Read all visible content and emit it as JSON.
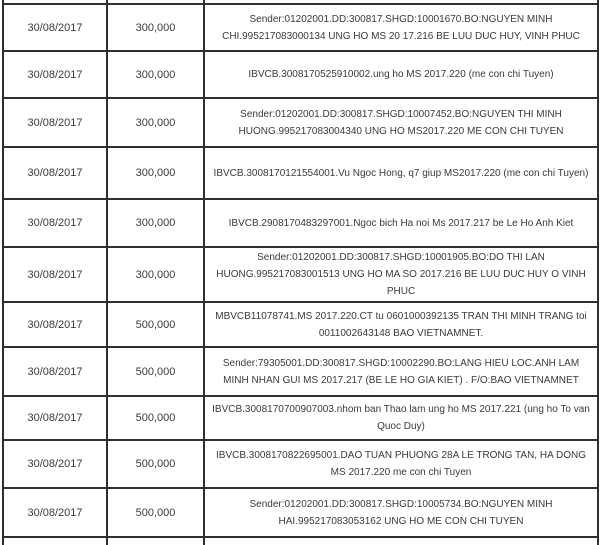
{
  "colors": {
    "border": "#2f2f2f",
    "text": "#3a3a3a",
    "background": "#ffffff"
  },
  "table": {
    "rows": [
      {
        "date": "30/08/2017",
        "amount": "300,000",
        "description": "Sender:01202001.DD:300817.SHGD:10001670.BO:NGUYEN MINH CHI.995217083000134 UNG HO MS 20 17.216 BE LUU DUC HUY, VINH PHUC"
      },
      {
        "date": "30/08/2017",
        "amount": "300,000",
        "description": "IBVCB.3008170525910002.ung ho MS 2017.220 (me con chi Tuyen)"
      },
      {
        "date": "30/08/2017",
        "amount": "300,000",
        "description": "Sender:01202001.DD:300817.SHGD:10007452.BO:NGUYEN THI MINH HUONG.995217083004340 UNG HO MS2017.220 ME CON CHI TUYEN"
      },
      {
        "date": "30/08/2017",
        "amount": "300,000",
        "description": "IBVCB.3008170121554001.Vu Ngoc Hong, q7 giup MS2017.220 (me con chi Tuyen)"
      },
      {
        "date": "30/08/2017",
        "amount": "300,000",
        "description": "IBVCB.2908170483297001.Ngoc bich Ha noi Ms 2017.217 be Le Ho Anh Kiet"
      },
      {
        "date": "30/08/2017",
        "amount": "300,000",
        "description": "Sender:01202001.DD:300817.SHGD:10001905.BO:DO THI LAN HUONG.995217083001513 UNG HO MA SO 2017.216 BE LUU DUC HUY O VINH PHUC"
      },
      {
        "date": "30/08/2017",
        "amount": "500,000",
        "description": "MBVCB11078741.MS 2017.220.CT tu 0601000392135 TRAN THI MINH TRANG toi 0011002643148 BAO VIETNAMNET."
      },
      {
        "date": "30/08/2017",
        "amount": "500,000",
        "description": "Sender:79305001.DD:300817.SHGD:10002290.BO:LANG HIEU LOC.ANH LAM MINH NHAN GUI MS 2017.217 (BE LE HO GIA KIET) . F/O:BAO VIETNAMNET"
      },
      {
        "date": "30/08/2017",
        "amount": "500,000",
        "description": "IBVCB.3008170700907003.nhom ban Thao lam ung ho MS 2017.221 (ung ho To van Quoc Duy)"
      },
      {
        "date": "30/08/2017",
        "amount": "500,000",
        "description": "IBVCB.3008170822695001.DAO TUAN PHUONG 28A LE TRONG TAN, HA DONG MS 2017.220 me con chi Tuyen"
      },
      {
        "date": "30/08/2017",
        "amount": "500,000",
        "description": "Sender:01202001.DD:300817.SHGD:10005734.BO:NGUYEN MINH HAI.995217083053162 UNG HO ME CON CHI TUYEN"
      }
    ]
  }
}
